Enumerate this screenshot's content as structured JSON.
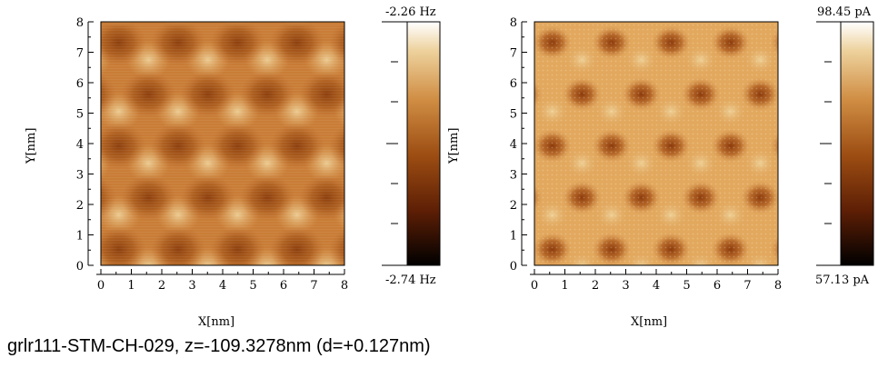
{
  "caption": "grlr111-STM-CH-029, z=-109.3278nm (d=+0.127nm)",
  "panels": [
    {
      "id": "left",
      "xlabel": "X[nm]",
      "ylabel": "Y[nm]",
      "xticks": [
        "0",
        "1",
        "2",
        "3",
        "4",
        "5",
        "6",
        "7",
        "8"
      ],
      "yticks": [
        "0",
        "1",
        "2",
        "3",
        "4",
        "5",
        "6",
        "7",
        "8"
      ],
      "colorbar_max": "-2.26 Hz",
      "colorbar_min": "-2.74 Hz"
    },
    {
      "id": "right",
      "xlabel": "X[nm]",
      "ylabel": "Y[nm]",
      "xticks": [
        "0",
        "1",
        "2",
        "3",
        "4",
        "5",
        "6",
        "7",
        "8"
      ],
      "yticks": [
        "0",
        "1",
        "2",
        "3",
        "4",
        "5",
        "6",
        "7",
        "8"
      ],
      "colorbar_max": "98.45 pA",
      "colorbar_min": "57.13 pA"
    }
  ],
  "colormap": [
    "#000000",
    "#5c1e05",
    "#9c4d12",
    "#d08d43",
    "#edd19c",
    "#ffffff"
  ]
}
